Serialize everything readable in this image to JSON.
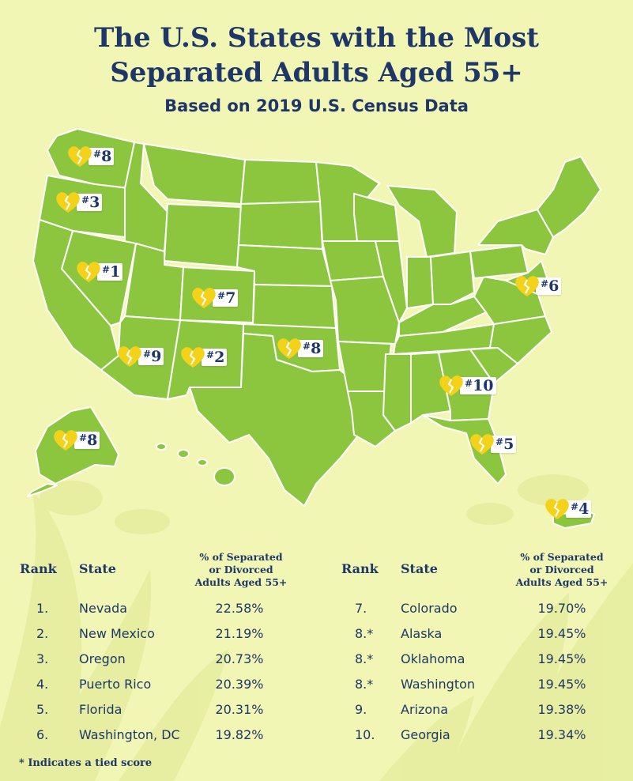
{
  "title_line1": "The U.S. States with the Most",
  "title_line2": "Separated Adults Aged 55+",
  "subtitle": "Based on 2019 U.S. Census Data",
  "colors": {
    "background": "#f2f6b4",
    "map": "#8cc63f",
    "map_border": "#ffffff",
    "text": "#1e3768",
    "heart": "#f4d21a"
  },
  "markers": [
    {
      "state": "Washington",
      "label": "8",
      "icon": "broken-heart-icon"
    },
    {
      "state": "Oregon",
      "label": "3",
      "icon": "broken-heart-icon"
    },
    {
      "state": "Nevada",
      "label": "1",
      "icon": "broken-heart-icon"
    },
    {
      "state": "Colorado",
      "label": "7",
      "icon": "broken-heart-icon"
    },
    {
      "state": "Arizona",
      "label": "9",
      "icon": "broken-heart-icon"
    },
    {
      "state": "New Mexico",
      "label": "2",
      "icon": "broken-heart-icon"
    },
    {
      "state": "Oklahoma",
      "label": "8",
      "icon": "broken-heart-icon"
    },
    {
      "state": "Washington, DC",
      "label": "6",
      "icon": "broken-heart-icon"
    },
    {
      "state": "Georgia",
      "label": "10",
      "icon": "broken-heart-icon"
    },
    {
      "state": "Florida",
      "label": "5",
      "icon": "broken-heart-icon"
    },
    {
      "state": "Alaska",
      "label": "8",
      "icon": "broken-heart-icon"
    },
    {
      "state": "Puerto Rico",
      "label": "4",
      "icon": "broken-heart-icon"
    }
  ],
  "table_headers": {
    "rank": "Rank",
    "state": "State",
    "pct_line1": "% of Separated",
    "pct_line2": "or Divorced",
    "pct_line3": "Adults Aged 55+"
  },
  "table_left": [
    {
      "rank": "1.",
      "state": "Nevada",
      "pct": "22.58%"
    },
    {
      "rank": "2.",
      "state": "New Mexico",
      "pct": "21.19%"
    },
    {
      "rank": "3.",
      "state": "Oregon",
      "pct": "20.73%"
    },
    {
      "rank": "4.",
      "state": "Puerto Rico",
      "pct": "20.39%"
    },
    {
      "rank": "5.",
      "state": "Florida",
      "pct": "20.31%"
    },
    {
      "rank": "6.",
      "state": "Washington, DC",
      "pct": "19.82%"
    }
  ],
  "table_right": [
    {
      "rank": "7.",
      "state": "Colorado",
      "pct": "19.70%"
    },
    {
      "rank": "8.*",
      "state": "Alaska",
      "pct": "19.45%"
    },
    {
      "rank": "8.*",
      "state": "Oklahoma",
      "pct": "19.45%"
    },
    {
      "rank": "8.*",
      "state": "Washington",
      "pct": "19.45%"
    },
    {
      "rank": "9.",
      "state": "Arizona",
      "pct": "19.38%"
    },
    {
      "rank": "10.",
      "state": "Georgia",
      "pct": "19.34%"
    }
  ],
  "footnote": "* Indicates a tied score"
}
